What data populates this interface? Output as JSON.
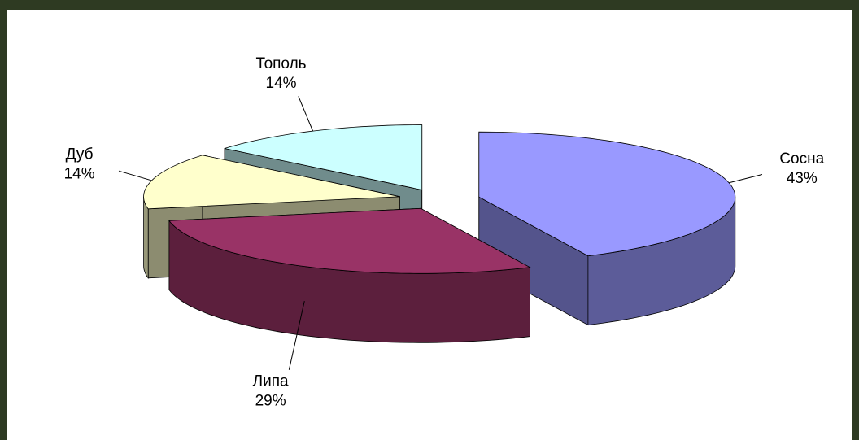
{
  "chart_data": {
    "type": "pie",
    "categories": [
      "Сосна",
      "Липа",
      "Дуб",
      "Тополь"
    ],
    "values": [
      43,
      29,
      14,
      14
    ],
    "value_labels": [
      "43%",
      "29%",
      "14%",
      "14%"
    ],
    "colors": [
      "#9999ff",
      "#993366",
      "#ffffcc",
      "#ccffff"
    ]
  }
}
